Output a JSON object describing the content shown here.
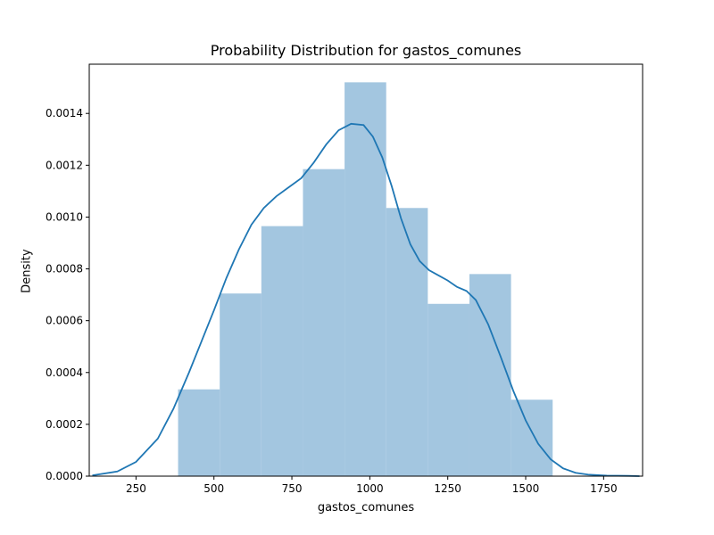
{
  "chart_data": {
    "type": "bar",
    "title": "Probability Distribution for gastos_comunes",
    "xlabel": "gastos_comunes",
    "ylabel": "Density",
    "xlim": [
      100,
      1875
    ],
    "ylim": [
      0,
      0.00159
    ],
    "xticks": [
      250,
      500,
      750,
      1000,
      1250,
      1500,
      1750
    ],
    "yticks": [
      0.0,
      0.0002,
      0.0004,
      0.0006,
      0.0008,
      0.001,
      0.0012,
      0.0014
    ],
    "ytick_labels": [
      "0.0000",
      "0.0002",
      "0.0004",
      "0.0006",
      "0.0008",
      "0.0010",
      "0.0012",
      "0.0014"
    ],
    "histogram": {
      "bin_edges": [
        385,
        518.5,
        652,
        785.5,
        919,
        1052.5,
        1186,
        1319.5,
        1453,
        1586.5
      ],
      "values": [
        0.000335,
        0.000705,
        0.000965,
        0.001185,
        0.00152,
        0.001035,
        0.000665,
        0.00078,
        0.000295
      ],
      "color": "#a3c6e0"
    },
    "kde": {
      "color": "#1f77b4",
      "x": [
        110,
        190,
        250,
        320,
        370,
        420,
        460,
        500,
        540,
        580,
        620,
        660,
        700,
        740,
        780,
        820,
        860,
        900,
        940,
        980,
        1010,
        1040,
        1070,
        1100,
        1130,
        1160,
        1190,
        1220,
        1250,
        1280,
        1310,
        1340,
        1380,
        1420,
        1460,
        1500,
        1540,
        1580,
        1620,
        1660,
        1700,
        1760,
        1830,
        1865
      ],
      "y": [
        3e-06,
        1.8e-05,
        5.5e-05,
        0.000145,
        0.00026,
        0.0004,
        0.00052,
        0.00064,
        0.000765,
        0.000875,
        0.00097,
        0.001035,
        0.00108,
        0.001115,
        0.00115,
        0.00121,
        0.00128,
        0.001335,
        0.00136,
        0.001355,
        0.00131,
        0.00123,
        0.00112,
        0.000995,
        0.000895,
        0.00083,
        0.000795,
        0.000775,
        0.000755,
        0.00073,
        0.000715,
        0.00068,
        0.000585,
        0.00046,
        0.00033,
        0.000215,
        0.000125,
        6.5e-05,
        3e-05,
        1.3e-05,
        6e-06,
        2e-06,
        1e-06,
        0.0
      ]
    },
    "grid": false,
    "legend": "none"
  }
}
